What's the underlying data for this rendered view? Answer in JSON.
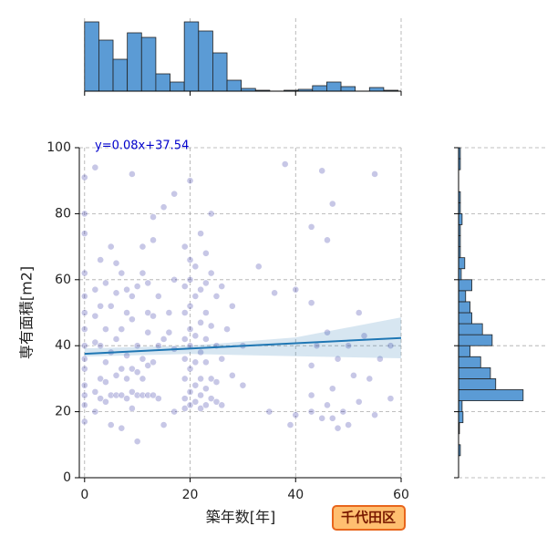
{
  "chart_data": {
    "type": "scatter",
    "x_label": "築年数[年]",
    "y_label": "専有面積[m2]",
    "xlim": [
      -1,
      60
    ],
    "ylim": [
      0,
      100
    ],
    "xticks": [
      0,
      20,
      40,
      60
    ],
    "yticks": [
      0,
      20,
      40,
      60,
      80,
      100
    ],
    "grid": true,
    "color": "#00008b",
    "x": [
      0,
      0,
      0,
      0,
      0,
      0,
      0,
      0,
      0,
      0,
      0,
      0,
      0,
      0,
      2,
      2,
      2,
      2,
      2,
      2,
      3,
      3,
      3,
      3,
      3,
      4,
      4,
      4,
      4,
      4,
      5,
      5,
      5,
      5,
      5,
      6,
      6,
      6,
      6,
      6,
      7,
      7,
      7,
      7,
      7,
      8,
      8,
      8,
      8,
      8,
      9,
      9,
      9,
      9,
      9,
      9,
      10,
      10,
      10,
      10,
      10,
      11,
      11,
      11,
      11,
      11,
      12,
      12,
      12,
      12,
      12,
      13,
      13,
      13,
      13,
      13,
      14,
      14,
      14,
      15,
      15,
      15,
      16,
      16,
      17,
      17,
      17,
      17,
      19,
      19,
      19,
      19,
      19,
      19,
      19,
      19,
      20,
      20,
      20,
      20,
      20,
      20,
      20,
      20,
      20,
      21,
      21,
      21,
      21,
      21,
      21,
      22,
      22,
      22,
      22,
      22,
      22,
      22,
      23,
      23,
      23,
      23,
      23,
      23,
      23,
      24,
      24,
      24,
      24,
      24,
      25,
      25,
      25,
      25,
      26,
      26,
      26,
      27,
      28,
      28,
      30,
      30,
      33,
      35,
      36,
      38,
      39,
      40,
      40,
      43,
      43,
      43,
      43,
      43,
      44,
      45,
      45,
      46,
      46,
      46,
      47,
      47,
      47,
      48,
      48,
      49,
      50,
      50,
      51,
      52,
      52,
      53,
      54,
      55,
      55,
      56,
      58,
      58
    ],
    "values": [
      17,
      22,
      25,
      28,
      33,
      36,
      40,
      45,
      50,
      55,
      62,
      74,
      80,
      91,
      94,
      20,
      26,
      41,
      49,
      57,
      24,
      30,
      40,
      52,
      66,
      23,
      29,
      35,
      45,
      59,
      16,
      25,
      38,
      52,
      70,
      25,
      31,
      42,
      56,
      65,
      15,
      25,
      33,
      45,
      62,
      24,
      30,
      37,
      50,
      57,
      21,
      26,
      33,
      48,
      55,
      92,
      11,
      25,
      32,
      40,
      58,
      25,
      30,
      36,
      62,
      70,
      25,
      34,
      44,
      50,
      59,
      25,
      35,
      49,
      72,
      79,
      24,
      40,
      55,
      16,
      42,
      82,
      44,
      50,
      20,
      39,
      60,
      86,
      21,
      24,
      30,
      36,
      42,
      50,
      58,
      70,
      22,
      26,
      33,
      40,
      45,
      52,
      60,
      66,
      90,
      23,
      28,
      35,
      43,
      55,
      64,
      21,
      25,
      30,
      38,
      47,
      57,
      74,
      22,
      27,
      35,
      42,
      50,
      59,
      68,
      24,
      30,
      46,
      62,
      80,
      23,
      29,
      40,
      55,
      22,
      36,
      58,
      45,
      31,
      52,
      28,
      40,
      64,
      20,
      56,
      95,
      16,
      19,
      57,
      20,
      25,
      34,
      53,
      76,
      40,
      18,
      93,
      22,
      44,
      72,
      18,
      27,
      83,
      15,
      36,
      20,
      16,
      40,
      31,
      50,
      23,
      43,
      30,
      92,
      19,
      36,
      24,
      40
    ],
    "regression": {
      "label": "y=0.08x+37.54",
      "slope": 0.08,
      "intercept": 37.54,
      "color": "#1f77b4",
      "ci_x": [
        0,
        20,
        40,
        60
      ],
      "ci_lower": [
        36.7,
        37.5,
        36.8,
        36.2
      ],
      "ci_upper": [
        39.2,
        40,
        42.5,
        48.6
      ]
    },
    "top_histogram": {
      "color": "#5b9bd5",
      "ylim": [
        0,
        80
      ],
      "bins": [
        0,
        2.7,
        5.4,
        8.1,
        10.8,
        13.5,
        16.2,
        18.9,
        21.6,
        24.3,
        27,
        29.7,
        32.4,
        35.1,
        37.8,
        40.5,
        43.2,
        45.9,
        48.6,
        51.3,
        54,
        56.7,
        59.4
      ],
      "counts": [
        76,
        56,
        35,
        64,
        59,
        19,
        10,
        76,
        66,
        42,
        12,
        3,
        1,
        0,
        1,
        2,
        6,
        10,
        5,
        0,
        4,
        1
      ]
    },
    "right_histogram": {
      "color": "#5b9bd5",
      "xlim": [
        0,
        100
      ],
      "bins": [
        0,
        3.33,
        6.67,
        10,
        13.33,
        16.67,
        20,
        23.33,
        26.67,
        30,
        33.33,
        36.67,
        40,
        43.33,
        46.67,
        50,
        53.33,
        56.67,
        60,
        63.33,
        66.67,
        70,
        73.33,
        76.67,
        80,
        83.33,
        86.67,
        90,
        93.33,
        96.67,
        100
      ],
      "counts": [
        0,
        0,
        2,
        0,
        1,
        5,
        4,
        73,
        42,
        36,
        25,
        13,
        38,
        27,
        15,
        13,
        8,
        15,
        3,
        7,
        2,
        2,
        2,
        4,
        2,
        2,
        0,
        0,
        2,
        2
      ]
    },
    "badge": "千代田区"
  }
}
